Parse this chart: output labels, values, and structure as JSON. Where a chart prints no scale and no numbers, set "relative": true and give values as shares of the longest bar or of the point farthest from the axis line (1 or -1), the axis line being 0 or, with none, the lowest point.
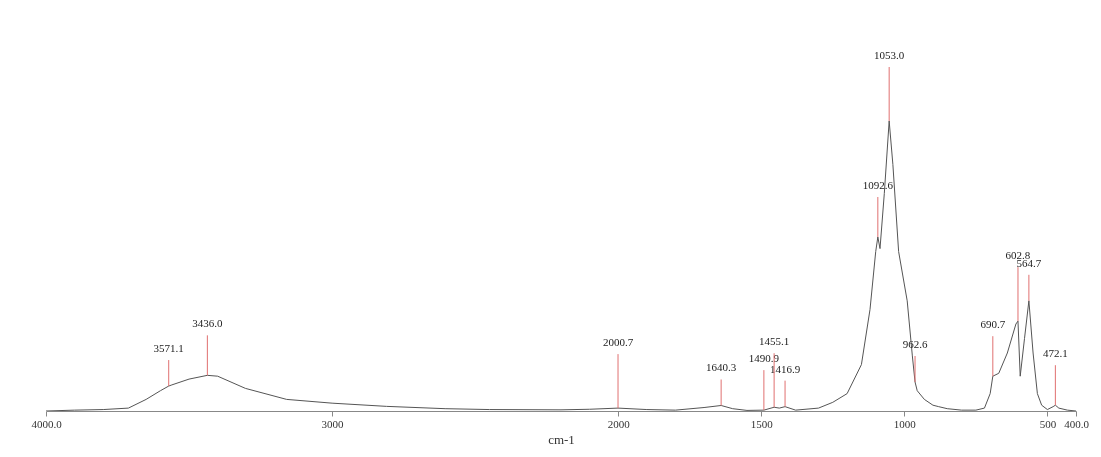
{
  "chart_data": {
    "type": "line",
    "xlabel": "cm-1",
    "relative": true,
    "color": "#555555",
    "x": [
      4000,
      3900,
      3800,
      3712,
      3650,
      3600,
      3571.1,
      3560,
      3500,
      3436.0,
      3400,
      3303,
      3159,
      3000,
      2810,
      2605,
      2450,
      2200,
      2100,
      2000.7,
      1900,
      1800,
      1700,
      1640.3,
      1600,
      1550,
      1490.9,
      1455.1,
      1437,
      1416.9,
      1380,
      1300,
      1250,
      1200,
      1150,
      1120,
      1100,
      1092.6,
      1085,
      1070,
      1053.0,
      1040,
      1020,
      990,
      972,
      962.6,
      955,
      930,
      900,
      880,
      850,
      800,
      750,
      720,
      700,
      690.7,
      670,
      640,
      610,
      602.8,
      595,
      580,
      564.7,
      550,
      535,
      520,
      500,
      480,
      472.1,
      460,
      430,
      400
    ],
    "values": [
      0,
      0.003,
      0.005,
      0.01,
      0.04,
      0.07,
      0.086,
      0.09,
      0.11,
      0.123,
      0.12,
      0.078,
      0.04,
      0.027,
      0.016,
      0.008,
      0.005,
      0.004,
      0.006,
      0.01,
      0.005,
      0.003,
      0.012,
      0.019,
      0.008,
      0.002,
      0.003,
      0.013,
      0.01,
      0.015,
      0.003,
      0.01,
      0.03,
      0.06,
      0.16,
      0.35,
      0.55,
      0.6,
      0.56,
      0.75,
      1.0,
      0.85,
      0.55,
      0.38,
      0.19,
      0.1,
      0.07,
      0.04,
      0.02,
      0.015,
      0.008,
      0.003,
      0.003,
      0.01,
      0.06,
      0.12,
      0.13,
      0.2,
      0.3,
      0.31,
      0.12,
      0.25,
      0.38,
      0.2,
      0.06,
      0.02,
      0.005,
      0.015,
      0.02,
      0.01,
      0.003,
      0
    ],
    "xlim": [
      4000,
      400
    ],
    "xticks": [
      {
        "value": 4000,
        "label": "4000.0"
      },
      3000,
      2000,
      1500,
      1000,
      500,
      {
        "value": 400,
        "label": "400.0"
      }
    ],
    "annotations": [
      {
        "text": "3571.1",
        "x": 3571.1,
        "y": 0.086
      },
      {
        "text": "3436.0",
        "x": 3436.0,
        "y": 0.123
      },
      {
        "text": "2000.7",
        "x": 2000.7,
        "y": 0.01
      },
      {
        "text": "1640.3",
        "x": 1640.3,
        "y": 0.019
      },
      {
        "text": "1490.9",
        "x": 1490.9,
        "y": 0.003
      },
      {
        "text": "1455.1",
        "x": 1455.1,
        "y": 0.013
      },
      {
        "text": "1416.9",
        "x": 1416.9,
        "y": 0.015
      },
      {
        "text": "1092.6",
        "x": 1092.6,
        "y": 0.6
      },
      {
        "text": "1053.0",
        "x": 1053.0,
        "y": 1.0
      },
      {
        "text": "962.6",
        "x": 962.6,
        "y": 0.1
      },
      {
        "text": "690.7",
        "x": 690.7,
        "y": 0.12
      },
      {
        "text": "602.8",
        "x": 602.8,
        "y": 0.31
      },
      {
        "text": "564.7",
        "x": 564.7,
        "y": 0.38
      },
      {
        "text": "472.1",
        "x": 472.1,
        "y": 0.02
      }
    ]
  }
}
